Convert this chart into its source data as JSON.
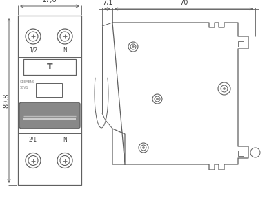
{
  "bg_color": "#ffffff",
  "line_color": "#606060",
  "line_width": 0.9,
  "dim_color": "#606060",
  "text_color": "#404040",
  "fig_width": 4.0,
  "fig_height": 2.91,
  "dpi": 100,
  "dim_176_label": "17,6",
  "dim_71_label": "7,1",
  "dim_70_label": "70",
  "dim_898_label": "89,8"
}
